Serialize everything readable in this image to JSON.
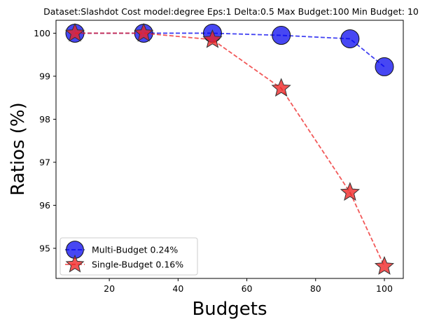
{
  "chart_data": {
    "type": "line",
    "title": "Dataset:Slashdot Cost model:degree Eps:1 Delta:0.5 Max Budget:100 Min Budget: 10",
    "xlabel": "Budgets",
    "ylabel": "Ratios (%)",
    "xlim": [
      4.5,
      105.5
    ],
    "ylim": [
      94.3,
      100.3
    ],
    "xticks": [
      20,
      40,
      60,
      80,
      100
    ],
    "yticks": [
      95,
      96,
      97,
      98,
      99,
      100
    ],
    "grid": false,
    "legend_position": "lower-left",
    "series": [
      {
        "name": "Multi-Budget 0.24%",
        "marker": "circle",
        "color": "#0000ee",
        "x": [
          10,
          30,
          50,
          70,
          90,
          100
        ],
        "y": [
          100.0,
          100.0,
          100.0,
          99.95,
          99.87,
          99.22
        ]
      },
      {
        "name": "Single-Budget 0.16%",
        "marker": "star",
        "color": "#ee2222",
        "x": [
          10,
          30,
          50,
          70,
          90,
          100
        ],
        "y": [
          100.0,
          100.0,
          99.85,
          98.72,
          96.3,
          94.58
        ]
      }
    ]
  }
}
